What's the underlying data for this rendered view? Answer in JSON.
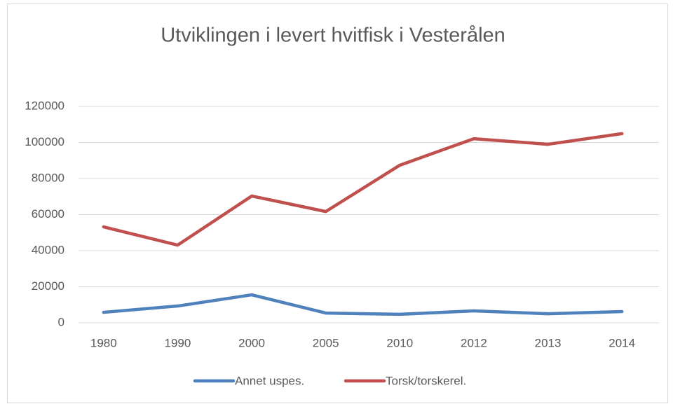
{
  "chart_data": {
    "type": "line",
    "title": "Utviklingen i levert hvitfisk i Vesterålen",
    "categories": [
      "1980",
      "1990",
      "2000",
      "2005",
      "2010",
      "2012",
      "2013",
      "2014"
    ],
    "series": [
      {
        "name": "Annet uspes.",
        "color": "#4f81bd",
        "values": [
          5800,
          9300,
          15500,
          5400,
          4700,
          6600,
          5000,
          6200
        ]
      },
      {
        "name": "Torsk/torskerel.",
        "color": "#c0504d",
        "values": [
          53200,
          43100,
          70300,
          61700,
          87400,
          102100,
          99000,
          104900
        ]
      }
    ],
    "ylim": [
      0,
      120000
    ],
    "yticks": [
      0,
      20000,
      40000,
      60000,
      80000,
      100000,
      120000
    ],
    "grid": true,
    "legend": "bottom"
  }
}
